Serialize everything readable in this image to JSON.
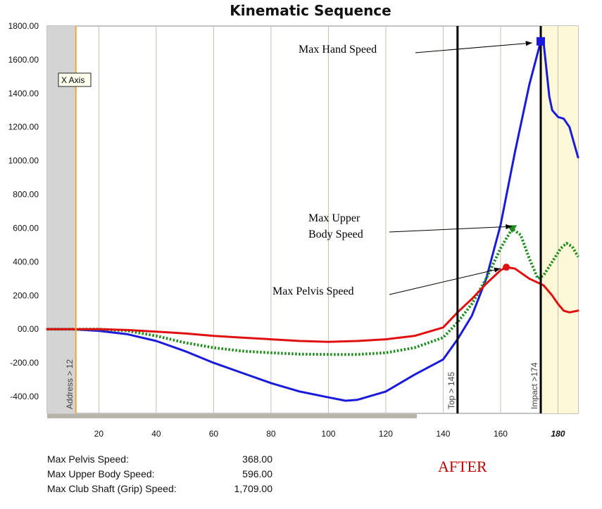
{
  "chart_data": {
    "type": "line",
    "title": "Kinematic Sequence",
    "xlabel": "",
    "ylabel": "",
    "xlim": [
      2,
      187
    ],
    "ylim": [
      -500,
      1800
    ],
    "x_ticks": [
      "20",
      "40",
      "60",
      "80",
      "100",
      "120",
      "140",
      "160",
      "180"
    ],
    "y_ticks": [
      "1800.00",
      "1600.00",
      "1400.00",
      "1200.00",
      "1000.00",
      "800.00",
      "600.00",
      "400.00",
      "200.00",
      "00.00",
      "-200.00",
      "-400.00"
    ],
    "series": [
      {
        "name": "Max Hand Speed",
        "color": "#1a1adb",
        "style": "solid",
        "points": [
          [
            2,
            0
          ],
          [
            10,
            0
          ],
          [
            20,
            -10
          ],
          [
            30,
            -30
          ],
          [
            40,
            -70
          ],
          [
            50,
            -130
          ],
          [
            60,
            -200
          ],
          [
            70,
            -260
          ],
          [
            80,
            -320
          ],
          [
            90,
            -370
          ],
          [
            100,
            -405
          ],
          [
            106,
            -425
          ],
          [
            110,
            -420
          ],
          [
            120,
            -370
          ],
          [
            130,
            -270
          ],
          [
            140,
            -180
          ],
          [
            145,
            -60
          ],
          [
            150,
            80
          ],
          [
            155,
            300
          ],
          [
            160,
            620
          ],
          [
            165,
            1050
          ],
          [
            170,
            1450
          ],
          [
            174,
            1709
          ],
          [
            175,
            1700
          ],
          [
            177,
            1380
          ],
          [
            178,
            1300
          ],
          [
            180,
            1260
          ],
          [
            182,
            1250
          ],
          [
            184,
            1200
          ],
          [
            187,
            1020
          ]
        ]
      },
      {
        "name": "Max Upper Body Speed",
        "color": "#1e8c1e",
        "style": "dotted",
        "points": [
          [
            2,
            0
          ],
          [
            20,
            0
          ],
          [
            30,
            -10
          ],
          [
            40,
            -40
          ],
          [
            50,
            -80
          ],
          [
            60,
            -110
          ],
          [
            70,
            -130
          ],
          [
            80,
            -140
          ],
          [
            90,
            -148
          ],
          [
            100,
            -150
          ],
          [
            110,
            -150
          ],
          [
            120,
            -140
          ],
          [
            130,
            -110
          ],
          [
            140,
            -50
          ],
          [
            145,
            40
          ],
          [
            150,
            150
          ],
          [
            155,
            300
          ],
          [
            160,
            480
          ],
          [
            164,
            596
          ],
          [
            167,
            560
          ],
          [
            170,
            420
          ],
          [
            173,
            300
          ],
          [
            175,
            320
          ],
          [
            178,
            400
          ],
          [
            181,
            480
          ],
          [
            183,
            510
          ],
          [
            185,
            490
          ],
          [
            187,
            430
          ]
        ]
      },
      {
        "name": "Max Pelvis Speed",
        "color": "#e01010",
        "style": "solid",
        "points": [
          [
            2,
            0
          ],
          [
            20,
            0
          ],
          [
            30,
            -5
          ],
          [
            40,
            -15
          ],
          [
            50,
            -25
          ],
          [
            60,
            -40
          ],
          [
            70,
            -50
          ],
          [
            80,
            -60
          ],
          [
            90,
            -70
          ],
          [
            100,
            -75
          ],
          [
            110,
            -70
          ],
          [
            120,
            -60
          ],
          [
            130,
            -40
          ],
          [
            140,
            10
          ],
          [
            145,
            100
          ],
          [
            150,
            180
          ],
          [
            155,
            270
          ],
          [
            160,
            350
          ],
          [
            162,
            368
          ],
          [
            165,
            360
          ],
          [
            170,
            300
          ],
          [
            175,
            260
          ],
          [
            178,
            200
          ],
          [
            180,
            150
          ],
          [
            182,
            110
          ],
          [
            184,
            100
          ],
          [
            187,
            110
          ]
        ]
      }
    ],
    "markers": [
      {
        "series": "Max Hand Speed",
        "x": 174,
        "y": 1709,
        "shape": "square"
      },
      {
        "series": "Max Upper Body Speed",
        "x": 164,
        "y": 596,
        "shape": "triangle"
      },
      {
        "series": "Max Pelvis Speed",
        "x": 162,
        "y": 368,
        "shape": "circle"
      }
    ],
    "vertical_lines": [
      {
        "x": 12,
        "label": "Address > 12",
        "color": "#f0a830"
      },
      {
        "x": 145,
        "label": "Top > 145",
        "color": "#000000"
      },
      {
        "x": 174,
        "label": "Impact >174",
        "color": "#000000"
      }
    ],
    "shaded_regions": [
      {
        "from": 2,
        "to": 12,
        "color": "#d4d4d4"
      },
      {
        "from": 174,
        "to": 187,
        "color": "#fdf8d8"
      }
    ],
    "annotations": [
      {
        "text": "Max Hand Speed",
        "target": [
          171,
          1700
        ]
      },
      {
        "text_lines": [
          "Max Upper",
          "Body Speed"
        ],
        "target": [
          164,
          610
        ]
      },
      {
        "text": "Max Pelvis Speed",
        "target": [
          160,
          360
        ]
      }
    ],
    "tooltip": "X Axis",
    "grid": true
  },
  "stats": [
    {
      "label": "Max Pelvis Speed:",
      "value": "368.00"
    },
    {
      "label": "Max Upper Body Speed:",
      "value": "596.00"
    },
    {
      "label": "Max Club Shaft (Grip) Speed:",
      "value": "1,709.00"
    }
  ],
  "stamp": "AFTER"
}
